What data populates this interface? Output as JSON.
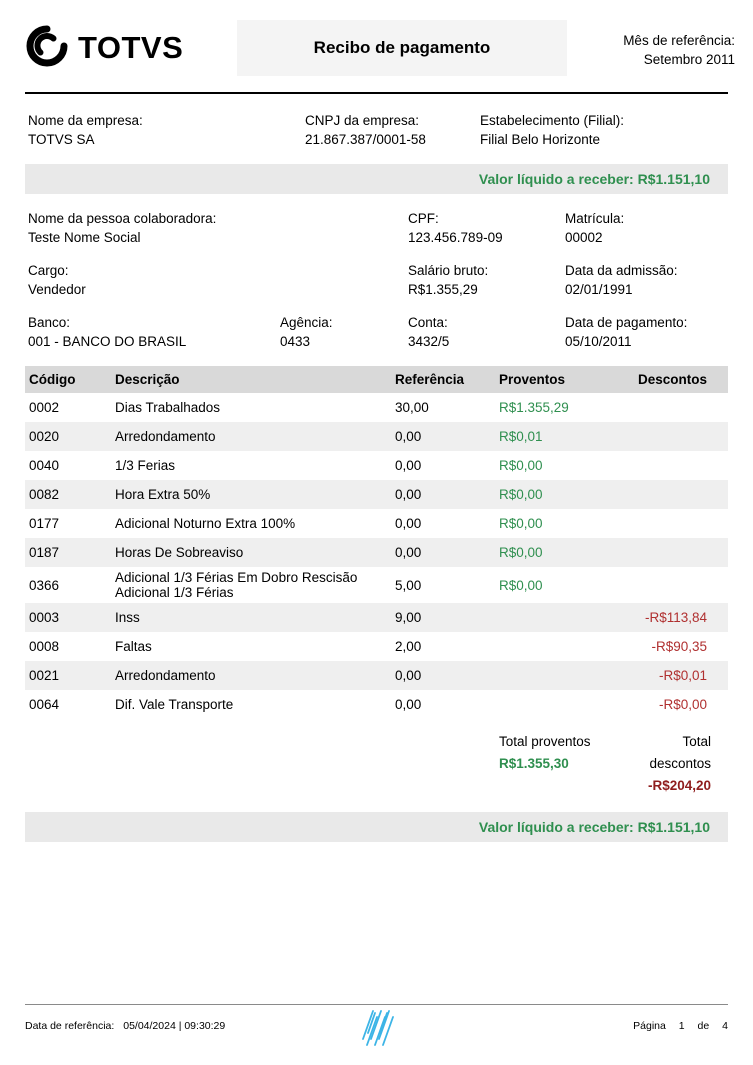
{
  "header": {
    "logo_text": "TOTVS",
    "title": "Recibo de pagamento",
    "reference_label": "Mês de referência:",
    "reference_value": "Setembro 2011"
  },
  "company": {
    "name_label": "Nome da empresa:",
    "name_value": "TOTVS SA",
    "cnpj_label": "CNPJ da empresa:",
    "cnpj_value": "21.867.387/0001-58",
    "branch_label": "Estabelecimento (Filial):",
    "branch_value": "Filial Belo Horizonte"
  },
  "banners": {
    "top": "Valor líquido a receber: R$1.151,10",
    "bottom": "Valor líquido a receber: R$1.151,10"
  },
  "employee": {
    "name_label": "Nome da pessoa colaboradora:",
    "name_value": "Teste Nome Social",
    "cpf_label": "CPF:",
    "cpf_value": "123.456.789-09",
    "matricula_label": "Matrícula:",
    "matricula_value": "00002",
    "cargo_label": "Cargo:",
    "cargo_value": "Vendedor",
    "salario_label": "Salário bruto:",
    "salario_value": "R$1.355,29",
    "admissao_label": "Data da admissão:",
    "admissao_value": "02/01/1991",
    "banco_label": "Banco:",
    "banco_value": "001 - BANCO DO BRASIL",
    "agencia_label": "Agência:",
    "agencia_value": "0433",
    "conta_label": "Conta:",
    "conta_value": "3432/5",
    "pagamento_label": "Data de pagamento:",
    "pagamento_value": "05/10/2011"
  },
  "table": {
    "headers": {
      "codigo": "Código",
      "descricao": "Descrição",
      "referencia": "Referência",
      "proventos": "Proventos",
      "descontos": "Descontos"
    },
    "rows": [
      {
        "codigo": "0002",
        "descricao": "Dias Trabalhados",
        "referencia": "30,00",
        "proventos": "R$1.355,29",
        "descontos": ""
      },
      {
        "codigo": "0020",
        "descricao": "Arredondamento",
        "referencia": "0,00",
        "proventos": "R$0,01",
        "descontos": ""
      },
      {
        "codigo": "0040",
        "descricao": "1/3 Ferias",
        "referencia": "0,00",
        "proventos": "R$0,00",
        "descontos": ""
      },
      {
        "codigo": "0082",
        "descricao": "Hora Extra 50%",
        "referencia": "0,00",
        "proventos": "R$0,00",
        "descontos": ""
      },
      {
        "codigo": "0177",
        "descricao": "Adicional Noturno Extra 100%",
        "referencia": "0,00",
        "proventos": "R$0,00",
        "descontos": ""
      },
      {
        "codigo": "0187",
        "descricao": "Horas De Sobreaviso",
        "referencia": "0,00",
        "proventos": "R$0,00",
        "descontos": ""
      },
      {
        "codigo": "0366",
        "descricao": "Adicional 1/3 Férias Em Dobro Rescisão Adicional 1/3 Férias",
        "referencia": "5,00",
        "proventos": "R$0,00",
        "descontos": ""
      },
      {
        "codigo": "0003",
        "descricao": "Inss",
        "referencia": "9,00",
        "proventos": "",
        "descontos": "-R$113,84"
      },
      {
        "codigo": "0008",
        "descricao": "Faltas",
        "referencia": "2,00",
        "proventos": "",
        "descontos": "-R$90,35"
      },
      {
        "codigo": "0021",
        "descricao": "Arredondamento",
        "referencia": "0,00",
        "proventos": "",
        "descontos": "-R$0,01"
      },
      {
        "codigo": "0064",
        "descricao": "Dif. Vale Transporte",
        "referencia": "0,00",
        "proventos": "",
        "descontos": "-R$0,00"
      }
    ]
  },
  "totals": {
    "proventos_label": "Total proventos",
    "proventos_value": "R$1.355,30",
    "descontos_label": "Total descontos",
    "descontos_value": "-R$204,20"
  },
  "footer": {
    "reference_label": "Data de referência:",
    "reference_value": "05/04/2024 | 09:30:29",
    "page_label": "Página",
    "page_current": "1",
    "page_of": "de",
    "page_total": "4"
  },
  "colors": {
    "accent_green": "#2f8f4f",
    "row_red": "#b03030",
    "total_red": "#8f1d1d",
    "banner_bg": "#e9e9e9",
    "table_header_bg": "#d9d9d9",
    "row_shaded_bg": "#efefef",
    "footer_mark_blue": "#3cb4e6"
  }
}
